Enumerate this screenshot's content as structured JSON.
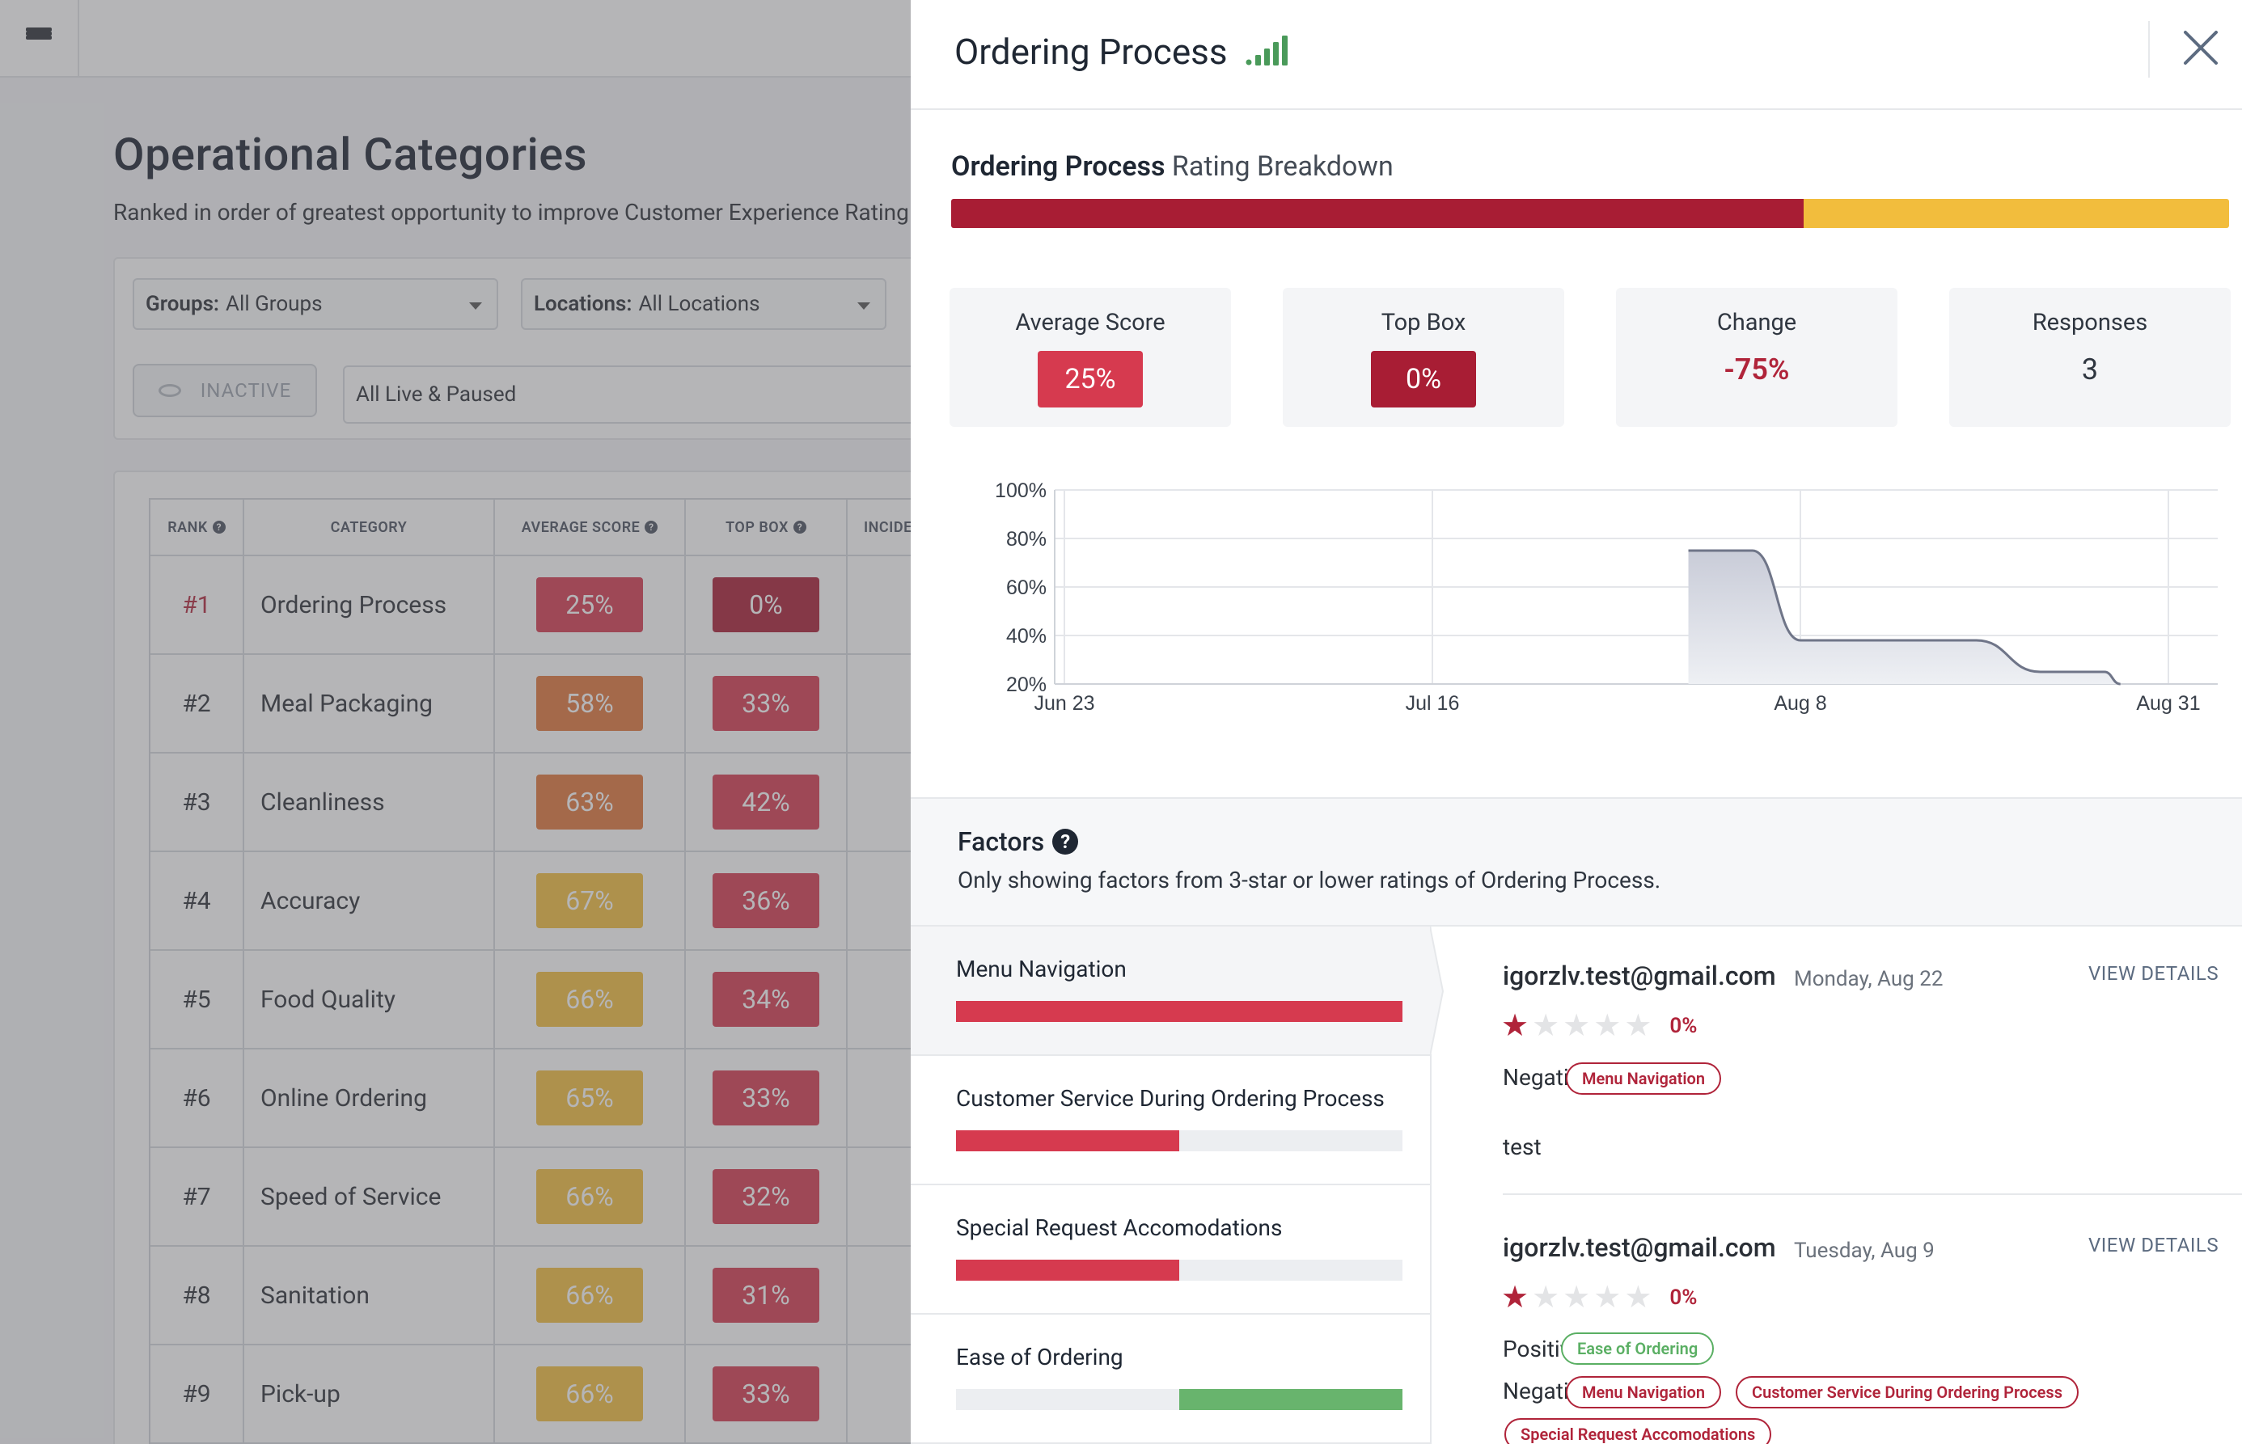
{
  "colors": {
    "deep_red": "#a81d34",
    "red": "#d63a4f",
    "orange": "#e0763a",
    "yellow": "#f2bd3d",
    "green": "#68b46d",
    "signal_green": "#4a9a5a"
  },
  "icons": {
    "menu": "hamburger-icon",
    "signal": "signal-bars-icon",
    "close": "close-icon",
    "help": "question-circle-icon",
    "eye": "eye-slash-icon",
    "star": "star-icon"
  },
  "background_page": {
    "title": "Operational Categories",
    "subtitle": "Ranked in order of greatest opportunity to improve Customer Experience Rating",
    "filters": {
      "groups_label": "Groups:",
      "groups_value": "All Groups",
      "locations_label": "Locations:",
      "locations_value": "All Locations",
      "inactive_button": "INACTIVE",
      "status_value": "All Live & Paused"
    },
    "table": {
      "headers": {
        "rank": "RANK",
        "category": "CATEGORY",
        "average_score": "AVERAGE SCORE",
        "top_box": "TOP BOX",
        "incidents": "INCIDENTS"
      },
      "rows": [
        {
          "rank": "#1",
          "category": "Ordering Process",
          "avg": "25%",
          "avg_color": "#d63a4f",
          "top": "0%",
          "top_color": "#a81d34"
        },
        {
          "rank": "#2",
          "category": "Meal Packaging",
          "avg": "58%",
          "avg_color": "#e0763a",
          "top": "33%",
          "top_color": "#d63a4f"
        },
        {
          "rank": "#3",
          "category": "Cleanliness",
          "avg": "63%",
          "avg_color": "#e0763a",
          "top": "42%",
          "top_color": "#d63a4f"
        },
        {
          "rank": "#4",
          "category": "Accuracy",
          "avg": "67%",
          "avg_color": "#f2bd3d",
          "top": "36%",
          "top_color": "#d63a4f"
        },
        {
          "rank": "#5",
          "category": "Food Quality",
          "avg": "66%",
          "avg_color": "#f2bd3d",
          "top": "34%",
          "top_color": "#d63a4f"
        },
        {
          "rank": "#6",
          "category": "Online Ordering",
          "avg": "65%",
          "avg_color": "#f2bd3d",
          "top": "33%",
          "top_color": "#d63a4f"
        },
        {
          "rank": "#7",
          "category": "Speed of Service",
          "avg": "66%",
          "avg_color": "#f2bd3d",
          "top": "32%",
          "top_color": "#d63a4f"
        },
        {
          "rank": "#8",
          "category": "Sanitation",
          "avg": "66%",
          "avg_color": "#f2bd3d",
          "top": "31%",
          "top_color": "#d63a4f"
        },
        {
          "rank": "#9",
          "category": "Pick-up",
          "avg": "66%",
          "avg_color": "#f2bd3d",
          "top": "33%",
          "top_color": "#d63a4f"
        }
      ]
    }
  },
  "panel": {
    "title": "Ordering Process",
    "breakdown_bold": "Ordering Process",
    "breakdown_rest": "Rating Breakdown",
    "breakdown_segments": [
      {
        "fraction": 0.667,
        "color": "#a81d34"
      },
      {
        "fraction": 0.333,
        "color": "#f2bd3d"
      }
    ],
    "stats": [
      {
        "label": "Average Score",
        "value": "25%",
        "style": "badge",
        "color": "#d63a4f"
      },
      {
        "label": "Top Box",
        "value": "0%",
        "style": "badge",
        "color": "#a81d34"
      },
      {
        "label": "Change",
        "value": "-75%",
        "style": "text",
        "color": "#b0243a"
      },
      {
        "label": "Responses",
        "value": "3",
        "style": "text",
        "color": "#2f3640"
      }
    ],
    "factors_title": "Factors",
    "factors_description": "Only showing factors from 3-star or lower ratings of Ordering Process.",
    "factors": [
      {
        "label": "Menu Navigation",
        "negative": 1.0,
        "positive": 0.0
      },
      {
        "label": "Customer Service During Ordering Process",
        "negative": 0.5,
        "positive": 0.0
      },
      {
        "label": "Special Request Accomodations",
        "negative": 0.5,
        "positive": 0.0
      },
      {
        "label": "Ease of Ordering",
        "negative": 0.0,
        "positive": 0.5
      }
    ],
    "reviews": [
      {
        "email": "igorzlv.test@gmail.com",
        "date": "Monday, Aug 22",
        "view_details": "VIEW DETAILS",
        "stars": 1,
        "percent": "0%",
        "negative_label": "Negative:",
        "negative_tags": [
          "Menu Navigation"
        ],
        "comment": "test"
      },
      {
        "email": "igorzlv.test@gmail.com",
        "date": "Tuesday, Aug 9",
        "view_details": "VIEW DETAILS",
        "stars": 1,
        "percent": "0%",
        "positive_label": "Positive:",
        "positive_tags": [
          "Ease of Ordering"
        ],
        "negative_label": "Negative:",
        "negative_tags": [
          "Menu Navigation",
          "Customer Service During Ordering Process",
          "Special Request Accomodations"
        ]
      }
    ]
  },
  "chart_data": {
    "type": "area",
    "x_labels": [
      "Jun 23",
      "Jul 16",
      "Aug 8",
      "Aug 31"
    ],
    "y_tick_labels": [
      "100%",
      "80%",
      "60%",
      "40%",
      "20%"
    ],
    "ylim": [
      20,
      100
    ],
    "grid": true,
    "series": [
      {
        "points": [
          {
            "x": "Aug 1",
            "y": 75
          },
          {
            "x": "Aug 5",
            "y": 75
          },
          {
            "x": "Aug 8",
            "y": 38
          },
          {
            "x": "Aug 19",
            "y": 38
          },
          {
            "x": "Aug 23",
            "y": 25
          },
          {
            "x": "Aug 27",
            "y": 25
          },
          {
            "x": "Aug 28",
            "y": 20
          }
        ]
      }
    ]
  }
}
